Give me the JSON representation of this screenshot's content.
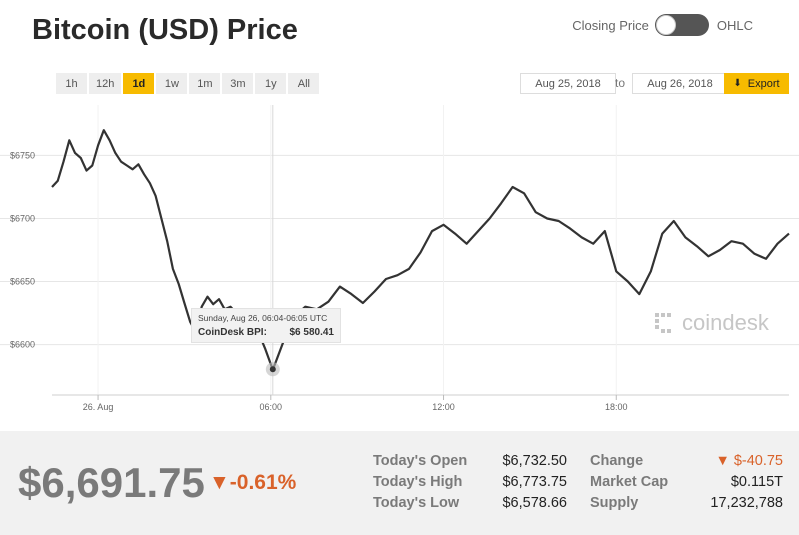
{
  "header": {
    "title": "Bitcoin (USD) Price",
    "toggle_left": "Closing Price",
    "toggle_right": "OHLC"
  },
  "range_buttons": [
    "1h",
    "12h",
    "1d",
    "1w",
    "1m",
    "3m",
    "1y",
    "All"
  ],
  "active_range": "1d",
  "date_range": {
    "from": "Aug 25, 2018",
    "separator": "to",
    "to": "Aug 26, 2018",
    "export_label": "Export"
  },
  "tooltip": {
    "date": "Sunday, Aug 26, 06:04-06:05 UTC",
    "label": "CoinDesk BPI:",
    "value": "$6 580.41"
  },
  "watermark": "coindesk",
  "summary": {
    "price": "$6,691.75",
    "change_pct": "▼-0.61%",
    "todays_open_label": "Today's Open",
    "todays_open": "$6,732.50",
    "todays_high_label": "Today's High",
    "todays_high": "$6,773.75",
    "todays_low_label": "Today's Low",
    "todays_low": "$6,578.66",
    "change_label": "Change",
    "change": "▼ $-40.75",
    "market_cap_label": "Market Cap",
    "market_cap": "$0.115T",
    "supply_label": "Supply",
    "supply": "17,232,788"
  },
  "colors": {
    "accent": "#f7bb00",
    "line": "#333333",
    "negative": "#d9622a"
  },
  "chart_data": {
    "type": "line",
    "x_unit": "hours since 26 Aug 00:00 UTC",
    "xlim": [
      -1.6,
      24
    ],
    "ylim": [
      6560,
      6790
    ],
    "yticks": [
      6600,
      6650,
      6700,
      6750
    ],
    "ytick_labels": [
      "$6600",
      "$6650",
      "$6700",
      "$6750"
    ],
    "xticks": [
      0,
      6,
      12,
      18
    ],
    "xtick_labels": [
      "26. Aug",
      "06:00",
      "12:00",
      "18:00"
    ],
    "grid": true,
    "series": [
      {
        "x": [
          -1.6,
          -1.4,
          -1.2,
          -1.0,
          -0.8,
          -0.6,
          -0.4,
          -0.2,
          0.0,
          0.2,
          0.4,
          0.6,
          0.8,
          1.0,
          1.2,
          1.4,
          1.6,
          1.8,
          2.0,
          2.2,
          2.4,
          2.6,
          2.8,
          3.0,
          3.2,
          3.4,
          3.6,
          3.8,
          4.0,
          4.2,
          4.4,
          4.6,
          4.8,
          5.0,
          5.2,
          5.4,
          5.6,
          5.8,
          6.07,
          6.4,
          6.8,
          7.2,
          7.6,
          8.0,
          8.4,
          8.8,
          9.2,
          9.6,
          10.0,
          10.4,
          10.8,
          11.2,
          11.6,
          12.0,
          12.4,
          12.8,
          13.2,
          13.6,
          14.0,
          14.4,
          14.8,
          15.2,
          15.6,
          16.0,
          16.4,
          16.8,
          17.2,
          17.6,
          18.0,
          18.4,
          18.8,
          19.2,
          19.6,
          20.0,
          20.4,
          20.8,
          21.2,
          21.6,
          22.0,
          22.4,
          22.8,
          23.2,
          23.6,
          24.0
        ],
        "y": [
          6725,
          6730,
          6745,
          6762,
          6752,
          6748,
          6738,
          6742,
          6758,
          6770,
          6762,
          6752,
          6745,
          6742,
          6739,
          6743,
          6735,
          6728,
          6718,
          6700,
          6682,
          6660,
          6648,
          6633,
          6618,
          6610,
          6630,
          6638,
          6632,
          6636,
          6628,
          6630,
          6625,
          6620,
          6618,
          6622,
          6608,
          6597,
          6580,
          6600,
          6622,
          6630,
          6628,
          6634,
          6646,
          6640,
          6633,
          6642,
          6652,
          6655,
          6660,
          6673,
          6690,
          6695,
          6688,
          6680,
          6690,
          6700,
          6712,
          6725,
          6720,
          6705,
          6700,
          6698,
          6692,
          6685,
          6680,
          6690,
          6658,
          6650,
          6640,
          6658,
          6688,
          6698,
          6685,
          6678,
          6670,
          6675,
          6682,
          6680,
          6672,
          6668,
          6680,
          6688
        ]
      }
    ]
  }
}
